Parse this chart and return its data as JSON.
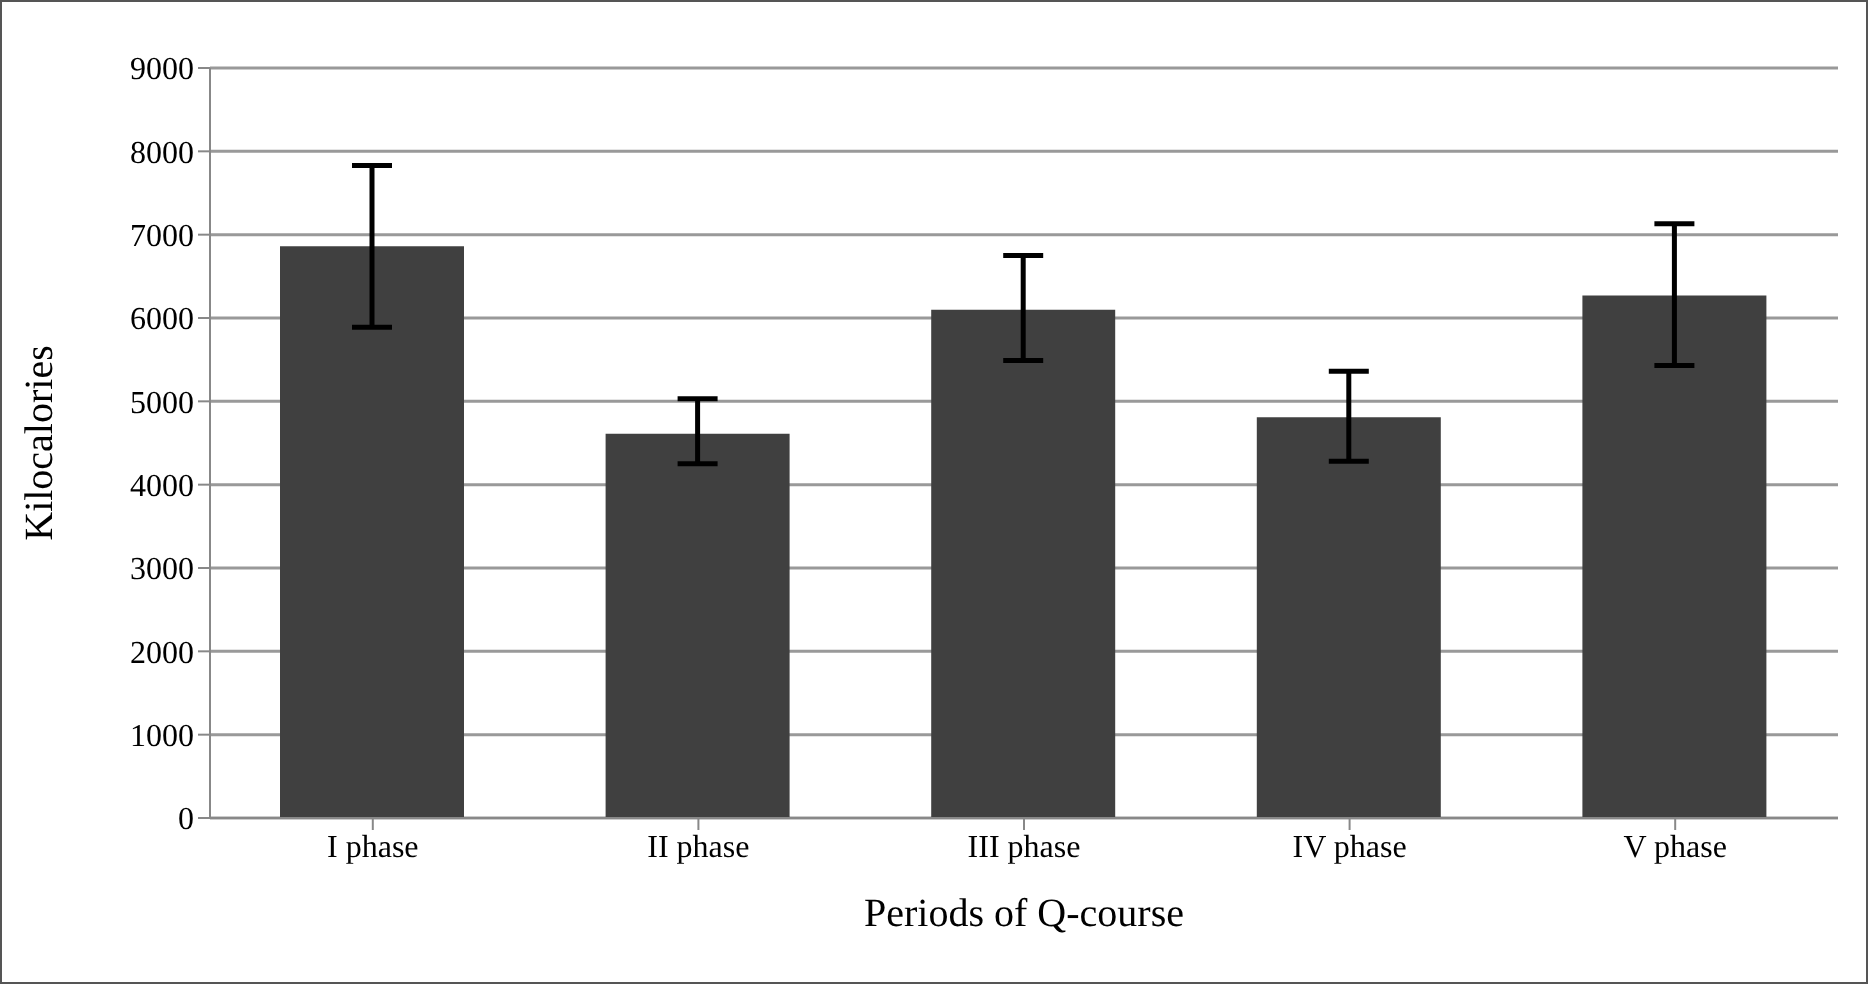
{
  "chart_data": {
    "type": "bar",
    "xlabel": "Periods of Q-course",
    "ylabel": "Kilocalories",
    "categories": [
      "I phase",
      "II phase",
      "III phase",
      "IV phase",
      "V phase"
    ],
    "values": [
      6860,
      4610,
      6100,
      4810,
      6270
    ],
    "errors": [
      [
        5890,
        7830
      ],
      [
        4250,
        5030
      ],
      [
        5490,
        6750
      ],
      [
        4280,
        5360
      ],
      [
        5430,
        7130
      ]
    ],
    "color": "#404040",
    "ylim": [
      0,
      9000
    ],
    "yticks": [
      0,
      1000,
      2000,
      3000,
      4000,
      5000,
      6000,
      7000,
      8000,
      9000
    ],
    "grid": "y"
  }
}
